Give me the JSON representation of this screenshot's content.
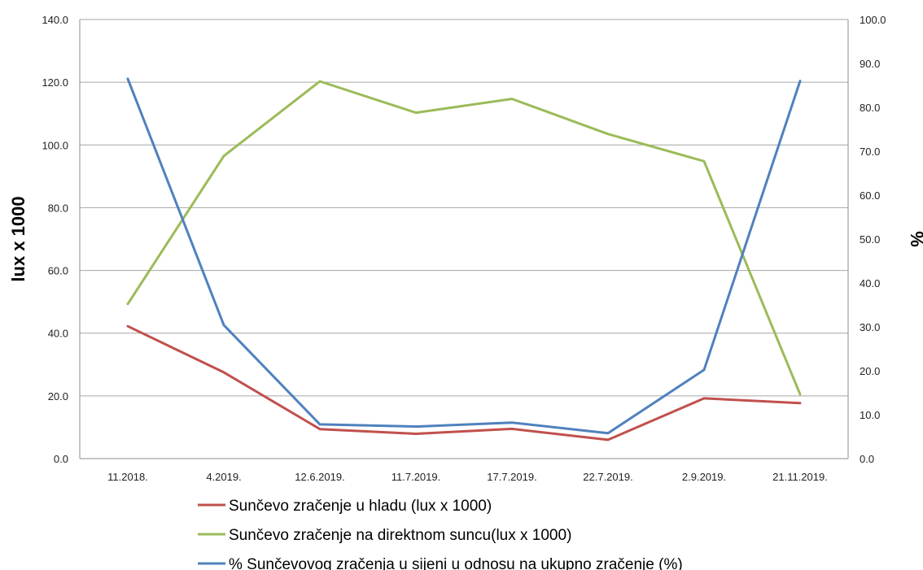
{
  "chart_data": {
    "type": "line",
    "categories": [
      "11.2018.",
      "4.2019.",
      "12.6.2019.",
      "11.7.2019.",
      "17.7.2019.",
      "22.7.2019.",
      "2.9.2019.",
      "21.11.2019."
    ],
    "ylabel": "lux x 1000",
    "y2label": "%",
    "ylim": [
      0,
      140
    ],
    "y2lim": [
      0,
      100
    ],
    "yticks": [
      "0.0",
      "20.0",
      "40.0",
      "60.0",
      "80.0",
      "100.0",
      "120.0",
      "140.0"
    ],
    "y2ticks": [
      "0.0",
      "10.0",
      "20.0",
      "30.0",
      "40.0",
      "50.0",
      "60.0",
      "70.0",
      "80.0",
      "90.0",
      "100.0"
    ],
    "grid": true,
    "legend_position": "bottom",
    "series": [
      {
        "name": "Sunčevo zračenje u hladu (lux x 1000)",
        "axis": "left",
        "color": "#c0504d",
        "values": [
          42.2,
          27.5,
          9.4,
          7.9,
          9.5,
          6.0,
          19.2,
          17.7
        ]
      },
      {
        "name": "Sunčevo zračenje na direktnom suncu(lux x 1000)",
        "axis": "left",
        "color": "#9bbb59",
        "values": [
          49.3,
          96.5,
          120.3,
          110.3,
          114.7,
          103.5,
          94.8,
          20.5
        ]
      },
      {
        "name": "% Sunčevovog zračenja u sijeni u odnosu na ukupno zračenje (%)",
        "axis": "right",
        "color": "#4f81bd",
        "values": [
          86.5,
          30.4,
          7.8,
          7.3,
          8.2,
          5.8,
          20.2,
          86.0
        ]
      }
    ]
  }
}
